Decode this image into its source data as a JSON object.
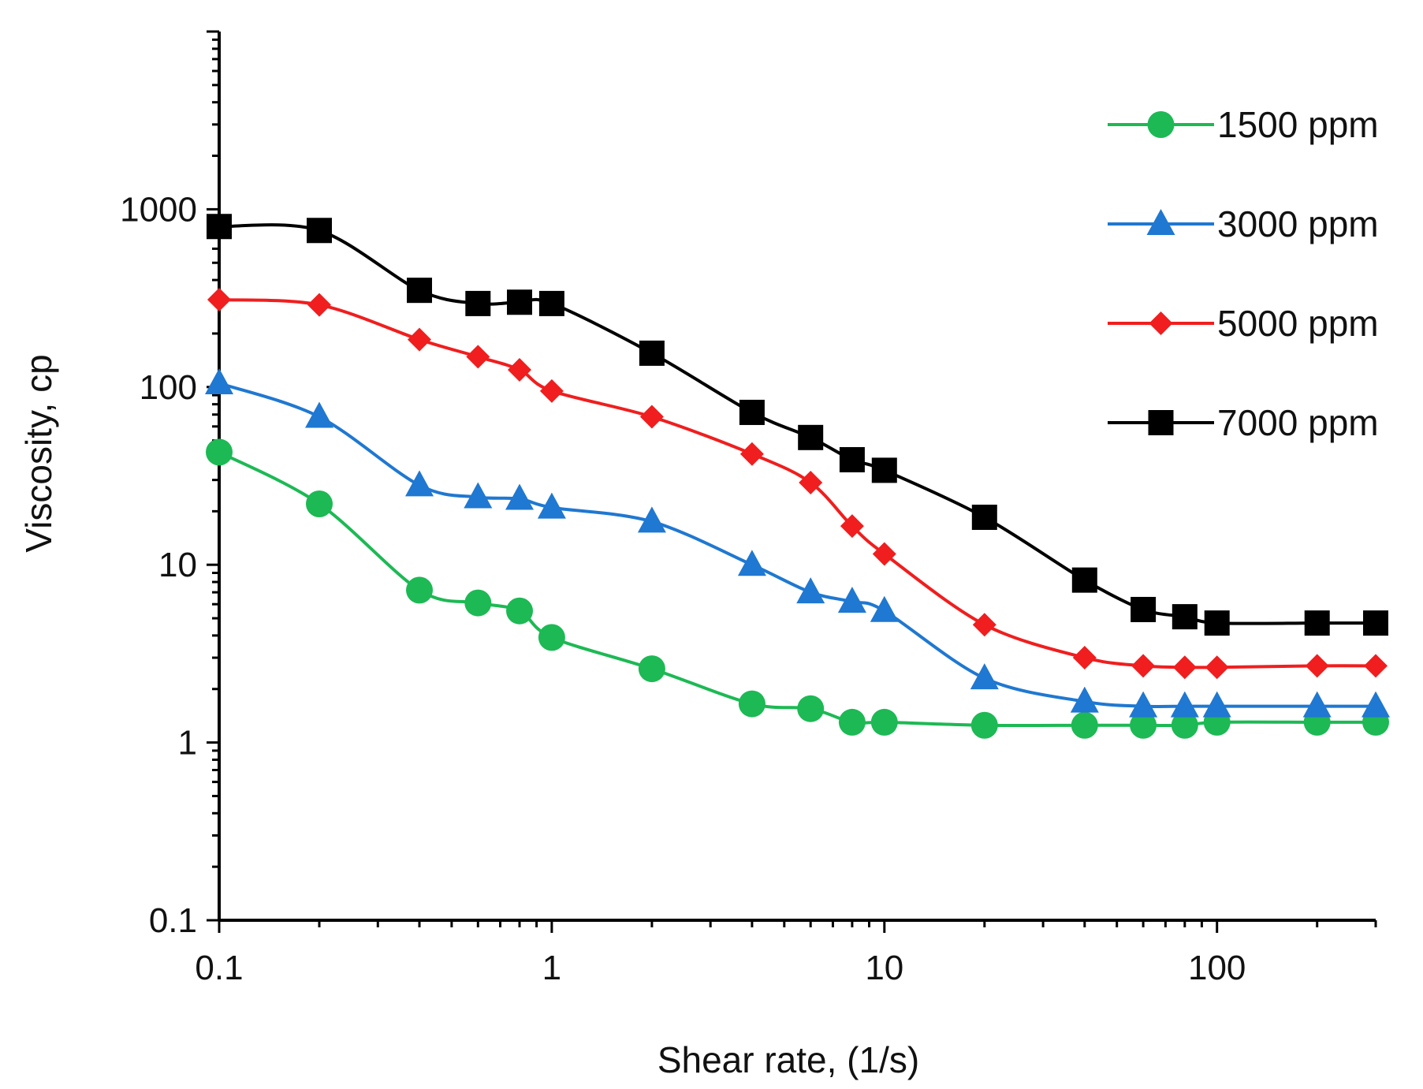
{
  "chart_data": {
    "type": "line",
    "title": "",
    "xlabel": "Shear rate, (1/s)",
    "ylabel": "Viscosity, cp",
    "xscale": "log",
    "yscale": "log",
    "xlim": [
      0.1,
      300
    ],
    "ylim": [
      0.1,
      10000
    ],
    "xticks": [
      0.1,
      1,
      10,
      100
    ],
    "xtick_labels": [
      "0.1",
      "1",
      "10",
      "100"
    ],
    "yticks": [
      0.1,
      1,
      10,
      100,
      1000
    ],
    "ytick_labels": [
      "0.1",
      "1",
      "10",
      "100",
      "1000"
    ],
    "grid": false,
    "legend_position": "top-right",
    "series": [
      {
        "name": "1500 ppm",
        "color": "#1db954",
        "marker": "circle",
        "x": [
          0.1,
          0.2,
          0.4,
          0.6,
          0.8,
          1,
          2,
          4,
          6,
          8,
          10,
          20,
          40,
          60,
          80,
          100,
          200,
          300
        ],
        "y": [
          43,
          22,
          7.2,
          6.1,
          5.5,
          3.9,
          2.6,
          1.65,
          1.55,
          1.3,
          1.3,
          1.25,
          1.25,
          1.25,
          1.25,
          1.3,
          1.3,
          1.3
        ]
      },
      {
        "name": "3000 ppm",
        "color": "#1f78d1",
        "marker": "triangle",
        "x": [
          0.1,
          0.2,
          0.4,
          0.6,
          0.8,
          1,
          2,
          4,
          6,
          8,
          10,
          20,
          40,
          60,
          80,
          100,
          200,
          300
        ],
        "y": [
          105,
          68,
          28,
          24,
          23.5,
          21,
          17.5,
          10,
          7,
          6.2,
          5.5,
          2.3,
          1.7,
          1.6,
          1.6,
          1.6,
          1.6,
          1.6
        ]
      },
      {
        "name": "5000 ppm",
        "color": "#f01e1e",
        "marker": "diamond",
        "x": [
          0.1,
          0.2,
          0.4,
          0.6,
          0.8,
          1,
          2,
          4,
          6,
          8,
          10,
          20,
          40,
          60,
          80,
          100,
          200,
          300
        ],
        "y": [
          310,
          290,
          185,
          148,
          125,
          95,
          68,
          42,
          29,
          16.5,
          11.5,
          4.6,
          3.0,
          2.7,
          2.65,
          2.65,
          2.7,
          2.7
        ]
      },
      {
        "name": "7000 ppm",
        "color": "#000000",
        "marker": "square",
        "x": [
          0.1,
          0.2,
          0.4,
          0.6,
          0.8,
          1,
          2,
          4,
          6,
          8,
          10,
          20,
          40,
          60,
          80,
          100,
          200,
          300
        ],
        "y": [
          800,
          760,
          350,
          295,
          300,
          295,
          155,
          72,
          52,
          39,
          34,
          18.5,
          8.2,
          5.6,
          5.1,
          4.7,
          4.7,
          4.7
        ]
      }
    ]
  }
}
